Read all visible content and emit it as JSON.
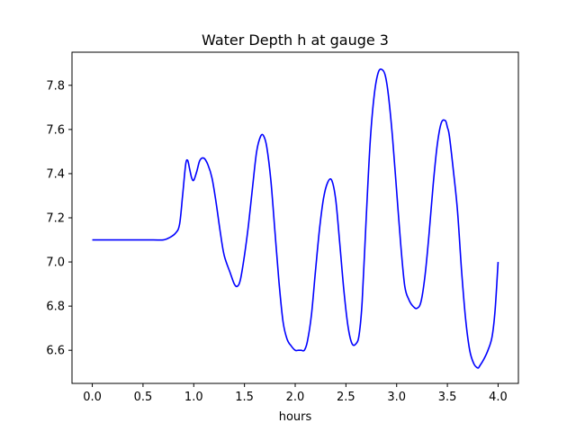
{
  "chart_data": {
    "type": "line",
    "title": "Water Depth h at gauge 3",
    "xlabel": "hours",
    "ylabel": "",
    "xlim": [
      -0.2,
      4.2
    ],
    "ylim": [
      6.45,
      7.95
    ],
    "xticks": [
      0.0,
      0.5,
      1.0,
      1.5,
      2.0,
      2.5,
      3.0,
      3.5,
      4.0
    ],
    "xtick_labels": [
      "0.0",
      "0.5",
      "1.0",
      "1.5",
      "2.0",
      "2.5",
      "3.0",
      "3.5",
      "4.0"
    ],
    "yticks": [
      6.6,
      6.8,
      7.0,
      7.2,
      7.4,
      7.6,
      7.8
    ],
    "ytick_labels": [
      "6.6",
      "6.8",
      "7.0",
      "7.2",
      "7.4",
      "7.6",
      "7.8"
    ],
    "grid": false,
    "series": [
      {
        "color": "#0000ff",
        "x": [
          0.0,
          0.2,
          0.4,
          0.6,
          0.7,
          0.76,
          0.82,
          0.86,
          0.89,
          0.92,
          0.94,
          0.96,
          0.98,
          1.0,
          1.03,
          1.06,
          1.1,
          1.14,
          1.18,
          1.22,
          1.26,
          1.3,
          1.36,
          1.4,
          1.43,
          1.46,
          1.5,
          1.54,
          1.58,
          1.62,
          1.66,
          1.69,
          1.72,
          1.76,
          1.8,
          1.84,
          1.88,
          1.92,
          1.96,
          2.0,
          2.03,
          2.06,
          2.09,
          2.12,
          2.16,
          2.2,
          2.24,
          2.28,
          2.32,
          2.36,
          2.4,
          2.44,
          2.48,
          2.52,
          2.56,
          2.6,
          2.63,
          2.66,
          2.7,
          2.74,
          2.78,
          2.82,
          2.86,
          2.89,
          2.92,
          2.96,
          3.0,
          3.04,
          3.08,
          3.12,
          3.16,
          3.2,
          3.24,
          3.28,
          3.32,
          3.36,
          3.4,
          3.44,
          3.48,
          3.5,
          3.52,
          3.56,
          3.6,
          3.64,
          3.68,
          3.72,
          3.76,
          3.8,
          3.82,
          3.86,
          3.9,
          3.94,
          3.97,
          4.0
        ],
        "y": [
          7.1,
          7.1,
          7.1,
          7.1,
          7.1,
          7.11,
          7.13,
          7.17,
          7.3,
          7.44,
          7.46,
          7.42,
          7.38,
          7.37,
          7.41,
          7.46,
          7.47,
          7.44,
          7.38,
          7.27,
          7.14,
          7.03,
          6.95,
          6.9,
          6.89,
          6.92,
          7.03,
          7.17,
          7.34,
          7.5,
          7.57,
          7.57,
          7.52,
          7.37,
          7.14,
          6.91,
          6.73,
          6.65,
          6.62,
          6.6,
          6.6,
          6.6,
          6.6,
          6.64,
          6.76,
          6.96,
          7.15,
          7.29,
          7.36,
          7.37,
          7.28,
          7.08,
          6.87,
          6.71,
          6.63,
          6.63,
          6.67,
          6.82,
          7.2,
          7.55,
          7.76,
          7.86,
          7.87,
          7.84,
          7.75,
          7.56,
          7.32,
          7.08,
          6.89,
          6.83,
          6.8,
          6.79,
          6.82,
          6.94,
          7.13,
          7.35,
          7.53,
          7.63,
          7.64,
          7.61,
          7.57,
          7.41,
          7.23,
          6.96,
          6.74,
          6.6,
          6.54,
          6.52,
          6.53,
          6.56,
          6.6,
          6.66,
          6.78,
          7.0
        ]
      }
    ]
  }
}
